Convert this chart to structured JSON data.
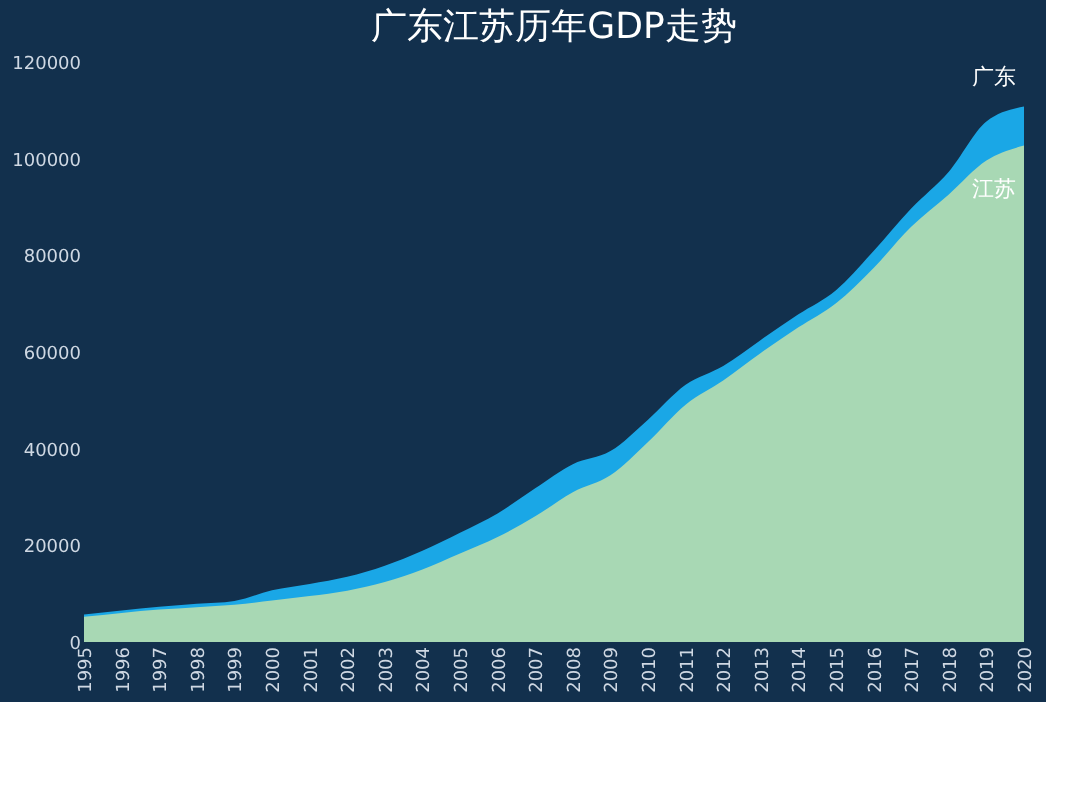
{
  "chart_data": {
    "type": "area",
    "title": "广东江苏历年GDP走势",
    "categories": [
      "1995",
      "1996",
      "1997",
      "1998",
      "1999",
      "2000",
      "2001",
      "2002",
      "2003",
      "2004",
      "2005",
      "2006",
      "2007",
      "2008",
      "2009",
      "2010",
      "2011",
      "2012",
      "2013",
      "2014",
      "2015",
      "2016",
      "2017",
      "2018",
      "2019",
      "2020"
    ],
    "series": [
      {
        "name": "广东",
        "color": "#1aa7e6",
        "values": [
          5700,
          6500,
          7300,
          7900,
          8500,
          10700,
          12000,
          13500,
          15800,
          18900,
          22600,
          26600,
          31800,
          36800,
          39500,
          46000,
          53200,
          57100,
          62500,
          67800,
          72800,
          80900,
          89700,
          97300,
          107700,
          110800
        ]
      },
      {
        "name": "江苏",
        "color": "#a8d8b4",
        "values": [
          5200,
          6000,
          6700,
          7200,
          7700,
          8600,
          9500,
          10600,
          12400,
          15000,
          18300,
          21700,
          26000,
          31000,
          34500,
          41400,
          49100,
          54100,
          59800,
          65100,
          70100,
          77400,
          85900,
          92600,
          99600,
          102700
        ]
      }
    ],
    "ylim": [
      0,
      120000
    ],
    "yticks": [
      0,
      20000,
      40000,
      60000,
      80000,
      100000,
      120000
    ],
    "grid": false
  }
}
